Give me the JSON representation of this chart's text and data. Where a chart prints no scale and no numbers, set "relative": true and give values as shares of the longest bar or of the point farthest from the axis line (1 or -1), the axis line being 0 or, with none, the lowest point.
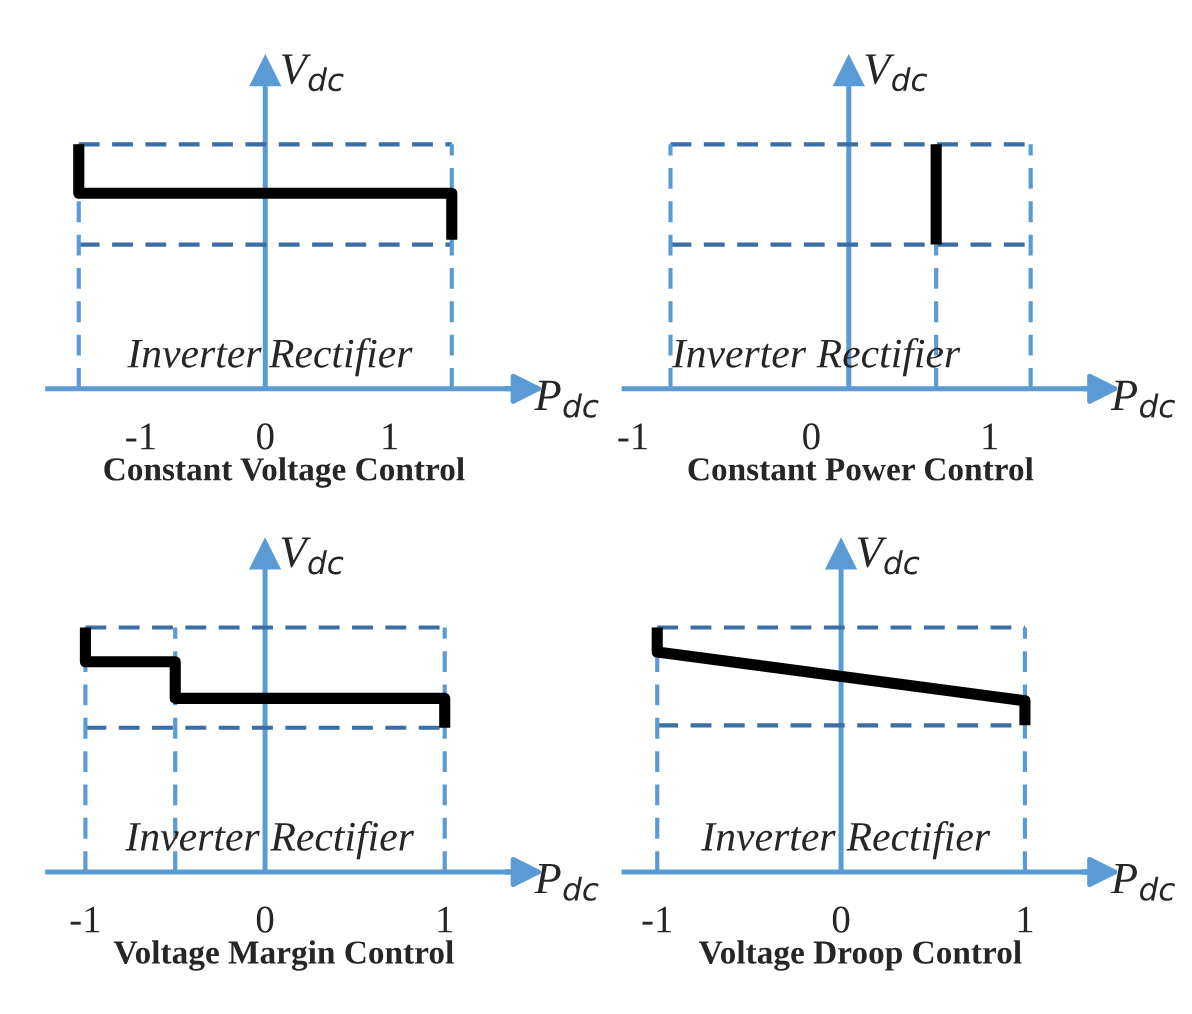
{
  "chart_data": [
    {
      "type": "line",
      "title": "Constant Voltage Control",
      "xlabel": "P$_{dc}$",
      "ylabel": "V$_{dc}$",
      "relative": true,
      "xlim": [
        -1.75,
        2.05
      ],
      "xticks": [
        -1,
        0,
        1
      ],
      "annotations": [
        "Inverter",
        "Rectifier"
      ],
      "series": [
        {
          "color": "#000000",
          "x": [
            -1.5,
            -1.5,
            1.5,
            1.5
          ],
          "values": [
            1,
            0.8,
            0.8,
            0.61
          ]
        }
      ],
      "ref_lines": [
        {
          "axis": "x",
          "value": 0,
          "color": "#5b9bd5",
          "line_style": "solid"
        },
        {
          "axis": "y",
          "value": 1,
          "color": "#3a6ea5",
          "line_style": "dashed"
        },
        {
          "axis": "y",
          "value": 0.59,
          "color": "#3a6ea5",
          "line_style": "dashed"
        },
        {
          "axis": "x",
          "value": -1.5,
          "color": "#5b9bd5",
          "line_style": "dashed"
        },
        {
          "axis": "x",
          "value": 1.5,
          "color": "#5b9bd5",
          "line_style": "dashed"
        }
      ]
    },
    {
      "type": "line",
      "title": "Constant Power Control",
      "xlabel": "P$_{dc}$",
      "ylabel": "V$_{dc}$",
      "relative": true,
      "xlim": [
        -1.05,
        1.6
      ],
      "xticks": [
        -1,
        0,
        1
      ],
      "annotations": [
        "Inverter",
        "Rectifier"
      ],
      "series": [
        {
          "color": "#000000",
          "x": [
            0.7,
            0.7
          ],
          "values": [
            1,
            0.59
          ]
        }
      ],
      "ref_lines": [
        {
          "axis": "x",
          "value": 0.21,
          "color": "#5b9bd5",
          "line_style": "solid"
        },
        {
          "axis": "y",
          "value": 1,
          "color": "#3a6ea5",
          "line_style": "dashed"
        },
        {
          "axis": "y",
          "value": 0.59,
          "color": "#3a6ea5",
          "line_style": "dashed"
        },
        {
          "axis": "x",
          "value": -0.79,
          "color": "#5b9bd5",
          "line_style": "dashed"
        },
        {
          "axis": "x",
          "value": 0.7,
          "color": "#5b9bd5",
          "line_style": "dashed"
        },
        {
          "axis": "x",
          "value": 1.23,
          "color": "#5b9bd5",
          "line_style": "dashed"
        }
      ]
    },
    {
      "type": "line",
      "title": "Voltage Margin Control",
      "xlabel": "P$_{dc}$",
      "ylabel": "V$_{dc}$",
      "relative": true,
      "xlim": [
        -1.21,
        1.42
      ],
      "xticks": [
        -1,
        0,
        1
      ],
      "annotations": [
        "Inverter",
        "Rectifier"
      ],
      "series": [
        {
          "color": "#000000",
          "x": [
            -1,
            -1,
            -0.5,
            -0.5,
            1,
            1
          ],
          "values": [
            1,
            0.86,
            0.86,
            0.71,
            0.71,
            0.59
          ]
        }
      ],
      "ref_lines": [
        {
          "axis": "x",
          "value": 0,
          "color": "#5b9bd5",
          "line_style": "solid"
        },
        {
          "axis": "y",
          "value": 1,
          "color": "#3a6ea5",
          "line_style": "dashed"
        },
        {
          "axis": "y",
          "value": 0.59,
          "color": "#3a6ea5",
          "line_style": "dashed"
        },
        {
          "axis": "x",
          "value": -1,
          "color": "#5b9bd5",
          "line_style": "dashed"
        },
        {
          "axis": "x",
          "value": -0.5,
          "color": "#5b9bd5",
          "line_style": "dashed"
        },
        {
          "axis": "x",
          "value": 1,
          "color": "#5b9bd5",
          "line_style": "dashed"
        }
      ]
    },
    {
      "type": "line",
      "title": "Voltage Droop Control",
      "xlabel": "P$_{dc}$",
      "ylabel": "V$_{dc}$",
      "relative": true,
      "xlim": [
        -1.18,
        1.39
      ],
      "xticks": [
        -1,
        0,
        1
      ],
      "annotations": [
        "Inverter",
        "Rectifier"
      ],
      "series": [
        {
          "color": "#000000",
          "x": [
            -1,
            -1,
            1,
            1
          ],
          "values": [
            1,
            0.9,
            0.7,
            0.6
          ]
        }
      ],
      "ref_lines": [
        {
          "axis": "x",
          "value": 0,
          "color": "#5b9bd5",
          "line_style": "solid"
        },
        {
          "axis": "y",
          "value": 1,
          "color": "#3a6ea5",
          "line_style": "dashed"
        },
        {
          "axis": "y",
          "value": 0.6,
          "color": "#3a6ea5",
          "line_style": "dashed"
        },
        {
          "axis": "x",
          "value": -1,
          "color": "#5b9bd5",
          "line_style": "dashed"
        },
        {
          "axis": "x",
          "value": 1,
          "color": "#5b9bd5",
          "line_style": "dashed"
        }
      ]
    }
  ]
}
